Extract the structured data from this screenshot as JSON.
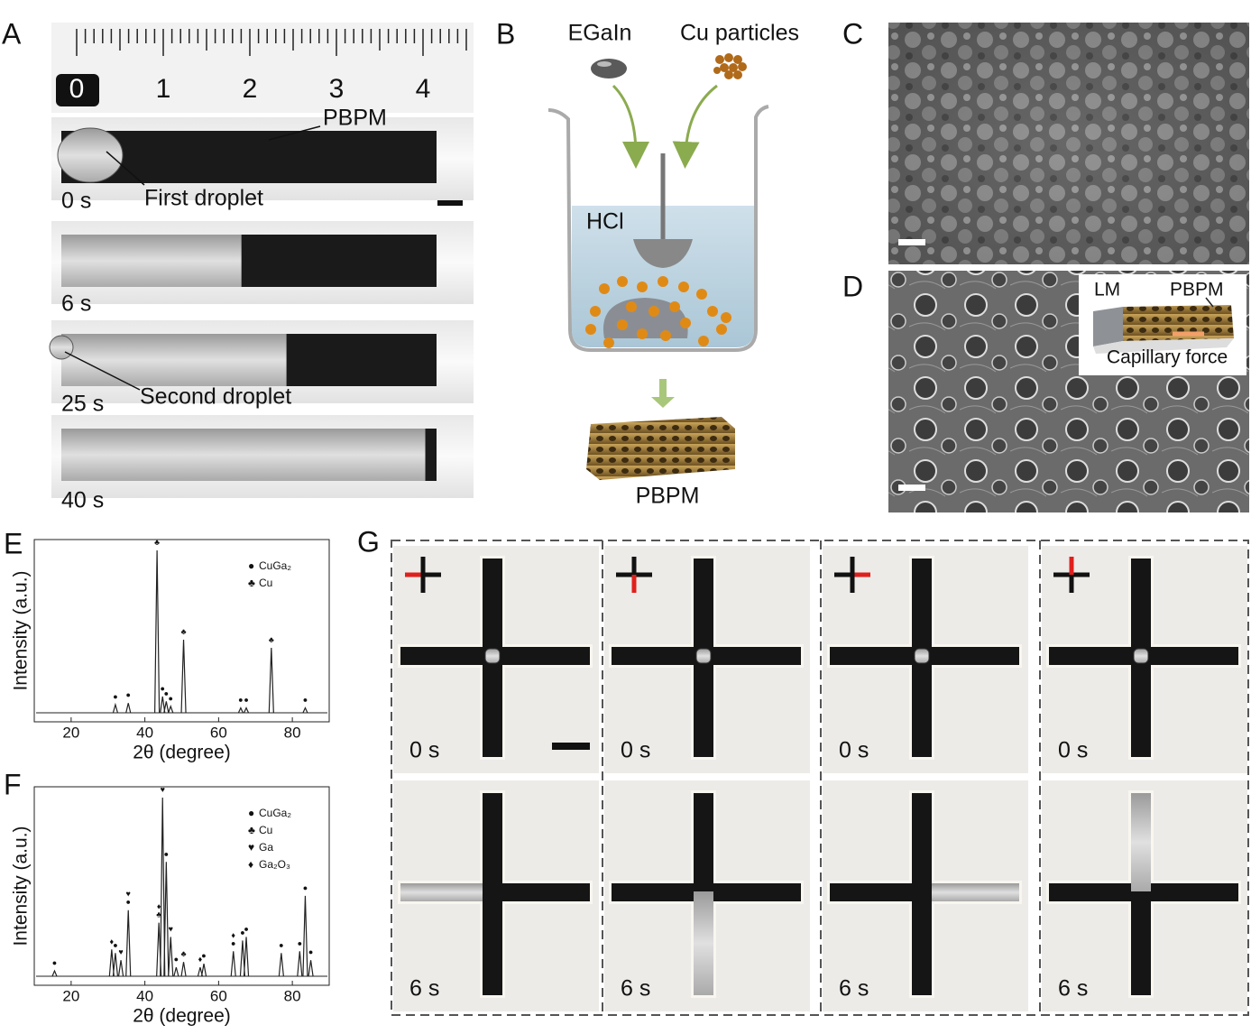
{
  "panels": {
    "A": {
      "label": "A",
      "ruler_labels": [
        0,
        1,
        2,
        3,
        4
      ],
      "pbpm": "PBPM",
      "first_droplet": "First droplet",
      "second_droplet": "Second droplet",
      "times": [
        "0 s",
        "6 s",
        "25 s",
        "40 s"
      ]
    },
    "B": {
      "label": "B",
      "egain": "EGaIn",
      "cu_particles": "Cu particles",
      "hcl": "HCl",
      "pbpm": "PBPM"
    },
    "C": {
      "label": "C"
    },
    "D": {
      "label": "D",
      "inset": {
        "lm": "LM",
        "pbpm": "PBPM",
        "force": "Capillary force"
      }
    },
    "E": {
      "label": "E",
      "xlabel": "2θ (degree)",
      "ylabel": "Intensity (a.u.)",
      "xlim": [
        10,
        90
      ],
      "xticks": [
        20,
        40,
        60,
        80
      ],
      "legend": [
        {
          "symbol": "●",
          "name": "CuGa₂"
        },
        {
          "symbol": "♣",
          "name": "Cu"
        }
      ],
      "peaks": [
        {
          "x": 32,
          "height": 5,
          "marker": "●"
        },
        {
          "x": 35.5,
          "height": 6,
          "marker": "●"
        },
        {
          "x": 43.3,
          "height": 100,
          "marker": "♣"
        },
        {
          "x": 44.8,
          "height": 10,
          "marker": "●"
        },
        {
          "x": 45.8,
          "height": 7,
          "marker": "●"
        },
        {
          "x": 47,
          "height": 4,
          "marker": "●"
        },
        {
          "x": 50.5,
          "height": 45,
          "marker": "♣"
        },
        {
          "x": 66,
          "height": 3,
          "marker": "●"
        },
        {
          "x": 67.5,
          "height": 3,
          "marker": "●"
        },
        {
          "x": 74.3,
          "height": 40,
          "marker": "♣"
        },
        {
          "x": 83.5,
          "height": 3,
          "marker": "●"
        }
      ]
    },
    "F": {
      "label": "F",
      "xlabel": "2θ (degree)",
      "ylabel": "Intensity (a.u.)",
      "xlim": [
        10,
        90
      ],
      "xticks": [
        20,
        40,
        60,
        80
      ],
      "legend": [
        {
          "symbol": "●",
          "name": "CuGa₂"
        },
        {
          "symbol": "♣",
          "name": "Cu"
        },
        {
          "symbol": "♥",
          "name": "Ga"
        },
        {
          "symbol": "♦",
          "name": "Ga₂O₃"
        }
      ],
      "peaks": [
        {
          "x": 15.5,
          "height": 3,
          "marker": "●"
        },
        {
          "x": 31,
          "height": 15,
          "marker": "♦"
        },
        {
          "x": 32,
          "height": 13,
          "marker": "●"
        },
        {
          "x": 33.5,
          "height": 9,
          "marker": "♥"
        },
        {
          "x": 35.5,
          "height": 37,
          "marker": "♥●"
        },
        {
          "x": 43.8,
          "height": 30,
          "marker": "♦♣"
        },
        {
          "x": 44.8,
          "height": 100,
          "marker": "♥"
        },
        {
          "x": 45.8,
          "height": 64,
          "marker": "●"
        },
        {
          "x": 47,
          "height": 22,
          "marker": "♥"
        },
        {
          "x": 48.5,
          "height": 5,
          "marker": "●"
        },
        {
          "x": 50.5,
          "height": 8,
          "marker": "♣"
        },
        {
          "x": 55,
          "height": 5,
          "marker": "♦"
        },
        {
          "x": 56,
          "height": 7,
          "marker": "●"
        },
        {
          "x": 64,
          "height": 14,
          "marker": "♦●"
        },
        {
          "x": 66.5,
          "height": 20,
          "marker": "●"
        },
        {
          "x": 67.5,
          "height": 22,
          "marker": "●"
        },
        {
          "x": 77,
          "height": 13,
          "marker": "●"
        },
        {
          "x": 82,
          "height": 14,
          "marker": "●"
        },
        {
          "x": 83.5,
          "height": 45,
          "marker": "●"
        },
        {
          "x": 85,
          "height": 9,
          "marker": "●"
        }
      ]
    },
    "G": {
      "label": "G",
      "times_top": [
        "0 s",
        "0 s",
        "0 s",
        "0 s"
      ],
      "times_bottom": [
        "6 s",
        "6 s",
        "6 s",
        "6 s"
      ]
    }
  }
}
